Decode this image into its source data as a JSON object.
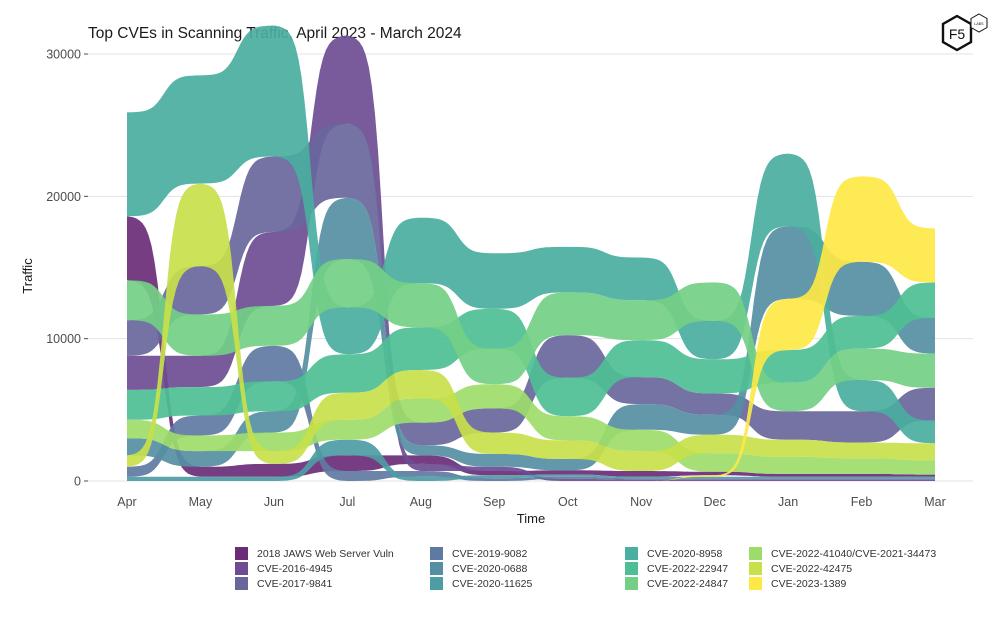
{
  "chart_data": {
    "type": "area",
    "subtype": "ranked-stream (sigmoid bump ribbons)",
    "title": "Top CVEs in Scanning Traffic, April 2023 - March 2024",
    "xlabel": "Time",
    "ylabel": "Traffic",
    "ylim": [
      0,
      30000
    ],
    "yticks": [
      0,
      10000,
      20000,
      30000
    ],
    "ytick_labels": [
      "0",
      "10000",
      "20000",
      "30000"
    ],
    "categories": [
      "Apr",
      "May",
      "Jun",
      "Jul",
      "Aug",
      "Sep",
      "Oct",
      "Nov",
      "Dec",
      "Jan",
      "Feb",
      "Mar"
    ],
    "grid": true,
    "legend_position": "bottom",
    "series": [
      {
        "name": "2018 JAWS Web Server Vuln",
        "color": "#6a2c78",
        "values": [
          4500,
          700,
          900,
          1100,
          600,
          300,
          300,
          400,
          250,
          200,
          200,
          150
        ]
      },
      {
        "name": "CVE-2016-4945",
        "color": "#6e4c93",
        "values": [
          2400,
          2200,
          5200,
          6200,
          500,
          300,
          150,
          100,
          100,
          100,
          100,
          100
        ]
      },
      {
        "name": "CVE-2017-9841",
        "color": "#69669c",
        "values": [
          2500,
          3400,
          5300,
          5200,
          1600,
          1700,
          3000,
          1900,
          1500,
          2000,
          2200,
          2300
        ]
      },
      {
        "name": "CVE-2019-9082",
        "color": "#5f7aa2",
        "values": [
          700,
          1400,
          2500,
          700,
          400,
          200,
          150,
          100,
          100,
          100,
          100,
          100
        ]
      },
      {
        "name": "CVE-2020-0688",
        "color": "#558fa3",
        "values": [
          1200,
          1100,
          1500,
          4300,
          700,
          900,
          800,
          1800,
          1400,
          5100,
          3800,
          2500
        ]
      },
      {
        "name": "CVE-2020-11625",
        "color": "#4e9ca4",
        "values": [
          300,
          300,
          300,
          1100,
          300,
          200,
          150,
          100,
          100,
          100,
          100,
          100
        ]
      },
      {
        "name": "CVE-2020-8958",
        "color": "#4aaea0",
        "values": [
          7300,
          7600,
          9200,
          3300,
          4600,
          3900,
          3200,
          3000,
          2700,
          5100,
          2200,
          1600
        ]
      },
      {
        "name": "CVE-2022-22947",
        "color": "#4ebf94",
        "values": [
          2100,
          2000,
          2100,
          2700,
          3000,
          2800,
          2700,
          2600,
          2400,
          2300,
          2300,
          2500
        ]
      },
      {
        "name": "CVE-2022-24847",
        "color": "#73cf85",
        "values": [
          2800,
          2900,
          2800,
          3400,
          3100,
          2500,
          3000,
          2800,
          2700,
          2000,
          2200,
          2400
        ]
      },
      {
        "name": "CVE-2022-41040/CVE-2021-34473",
        "color": "#9ddc6a",
        "values": [
          1300,
          1100,
          1300,
          1400,
          1700,
          1700,
          1700,
          1500,
          1300,
          1200,
          1100,
          1000
        ]
      },
      {
        "name": "CVE-2022-42475",
        "color": "#c8e04a",
        "values": [
          800,
          5800,
          900,
          1900,
          2000,
          1500,
          1300,
          1400,
          1300,
          1200,
          1100,
          1200
        ]
      },
      {
        "name": "CVE-2023-1389",
        "color": "#fde845",
        "values": [
          0,
          0,
          0,
          0,
          0,
          0,
          0,
          0,
          100,
          3600,
          6000,
          3800
        ]
      }
    ]
  },
  "logo": {
    "text": "F5",
    "badge": "LABS"
  }
}
